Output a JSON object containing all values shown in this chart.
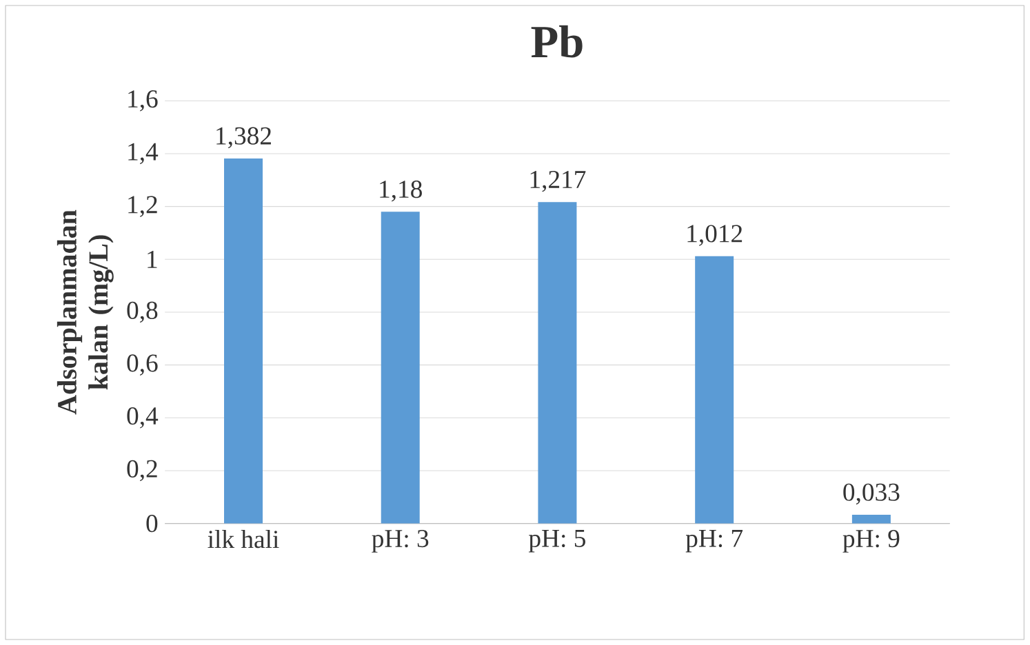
{
  "chart_data": {
    "type": "bar",
    "title": "Pb",
    "ylabel": "Adsorplanmadan kalan (mg/L)",
    "categories": [
      "ilk hali",
      "pH: 3",
      "pH: 5",
      "pH: 7",
      "pH: 9"
    ],
    "values": [
      1.382,
      1.18,
      1.217,
      1.012,
      0.033
    ],
    "value_labels": [
      "1,382",
      "1,18",
      "1,217",
      "1,012",
      "0,033"
    ],
    "color": "#5b9bd5",
    "ylim": [
      0,
      1.6
    ],
    "yticks": [
      0,
      {
        "value": 0.2,
        "label": "0,2"
      },
      {
        "value": 0.4,
        "label": "0,4"
      },
      {
        "value": 0.6,
        "label": "0,6"
      },
      {
        "value": 0.8,
        "label": "0,8"
      },
      1,
      {
        "value": 1.2,
        "label": "1,2"
      },
      {
        "value": 1.4,
        "label": "1,4"
      },
      {
        "value": 1.6,
        "label": "1,6"
      }
    ],
    "grid": "y"
  }
}
